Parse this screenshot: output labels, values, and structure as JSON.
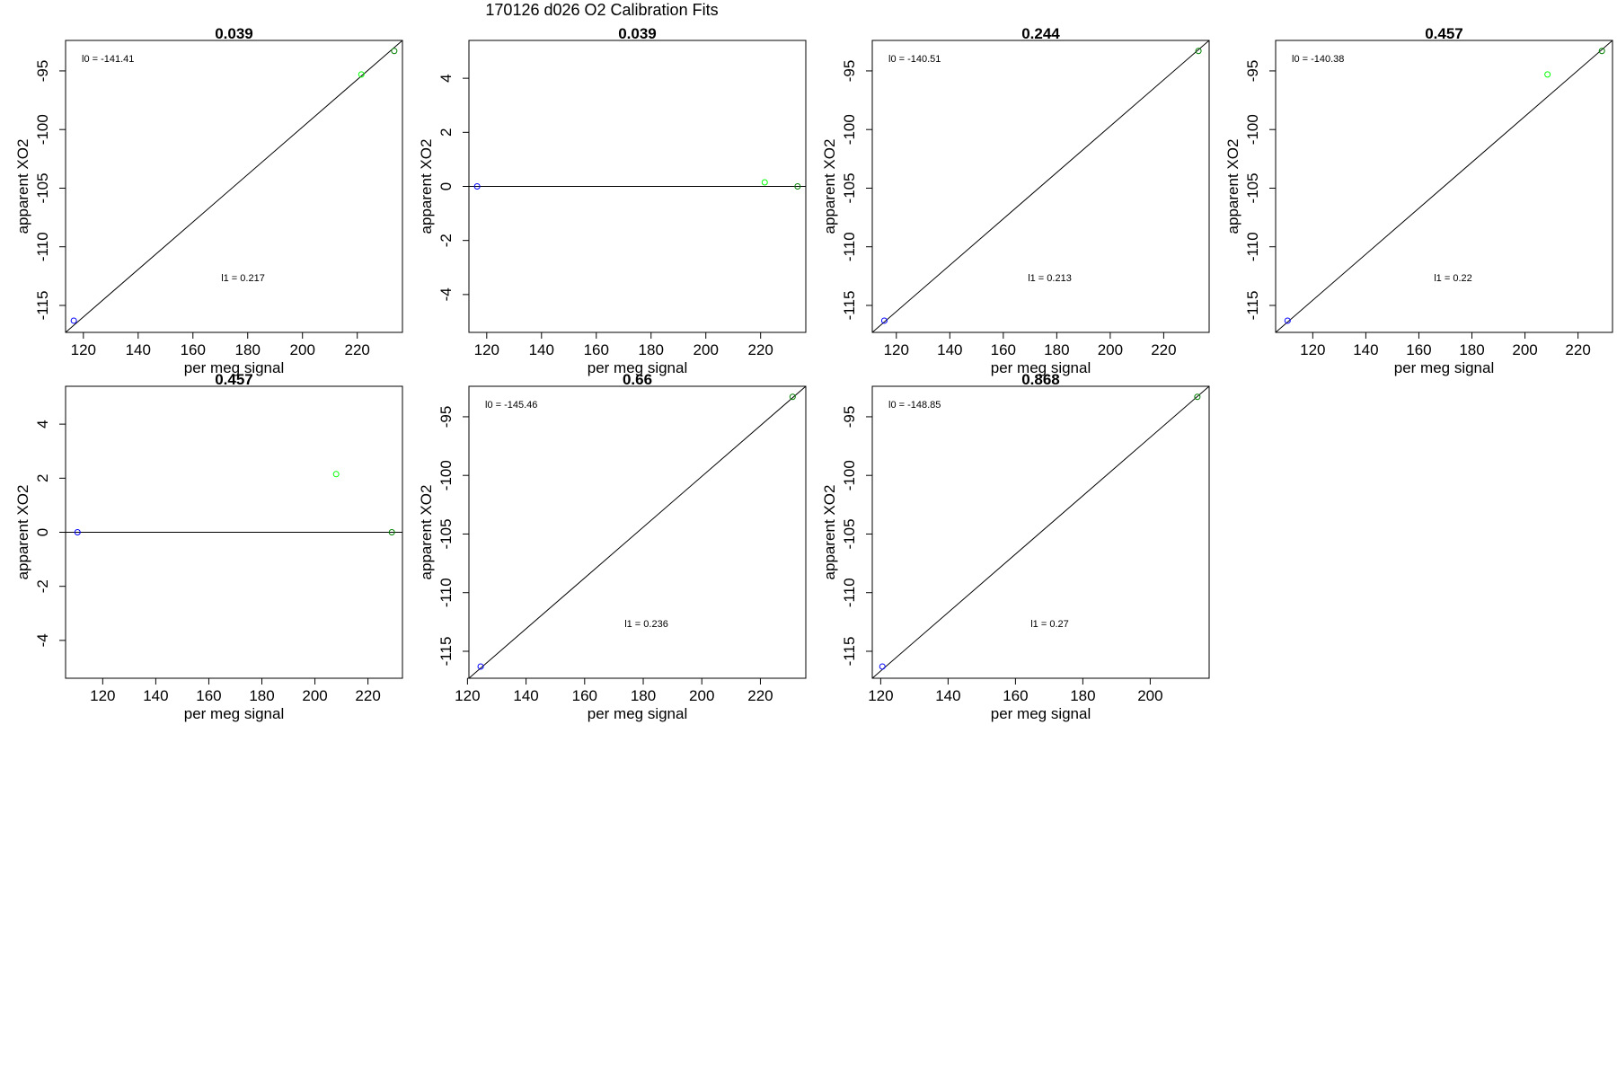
{
  "figure": {
    "title": "170126   d026   O2 Calibration Fits"
  },
  "chart_data": [
    {
      "type": "scatter",
      "title": "0.039",
      "xlabel": "per meg signal",
      "ylabel": "apparent XO2",
      "xlim": [
        113.5,
        236.5
      ],
      "ylim": [
        -117.3,
        -92.4
      ],
      "xticks": [
        120,
        140,
        160,
        180,
        200,
        220
      ],
      "yticks": [
        -95,
        -100,
        -105,
        -110,
        -115
      ],
      "fit_line": "diagonal",
      "annotations": {
        "l0": "l0 =  -141.41",
        "l1": "l1 =  0.217"
      },
      "points": [
        {
          "x": 116.5,
          "y": -116.3,
          "color": "#0000ff"
        },
        {
          "x": 221.5,
          "y": -95.3,
          "color": "#00ff00"
        },
        {
          "x": 233.5,
          "y": -93.3,
          "color": "#008000"
        }
      ]
    },
    {
      "type": "scatter",
      "title": "0.039",
      "xlabel": "per meg signal",
      "ylabel": "apparent XO2",
      "xlim": [
        113.5,
        236.5
      ],
      "ylim": [
        -5.4,
        5.4
      ],
      "xticks": [
        120,
        140,
        160,
        180,
        200,
        220
      ],
      "yticks": [
        4,
        2,
        0,
        -2,
        -4
      ],
      "fit_line": "zero",
      "annotations": {},
      "points": [
        {
          "x": 116.5,
          "y": 0.0,
          "color": "#0000ff"
        },
        {
          "x": 221.5,
          "y": 0.15,
          "color": "#00ff00"
        },
        {
          "x": 233.5,
          "y": 0.0,
          "color": "#008000"
        }
      ]
    },
    {
      "type": "scatter",
      "title": "0.244",
      "xlabel": "per meg signal",
      "ylabel": "apparent XO2",
      "xlim": [
        111.0,
        237.0
      ],
      "ylim": [
        -117.3,
        -92.4
      ],
      "xticks": [
        120,
        140,
        160,
        180,
        200,
        220
      ],
      "yticks": [
        -95,
        -100,
        -105,
        -110,
        -115
      ],
      "fit_line": "diagonal",
      "annotations": {
        "l0": "l0 =  -140.51",
        "l1": "l1 =  0.213"
      },
      "points": [
        {
          "x": 115.5,
          "y": -116.3,
          "color": "#0000ff"
        },
        {
          "x": 233.0,
          "y": -93.3,
          "color": "#008000"
        }
      ]
    },
    {
      "type": "scatter",
      "title": "0.457",
      "xlabel": "per meg signal",
      "ylabel": "apparent XO2",
      "xlim": [
        106.0,
        233.0
      ],
      "ylim": [
        -117.3,
        -92.4
      ],
      "xticks": [
        120,
        140,
        160,
        180,
        200,
        220
      ],
      "yticks": [
        -95,
        -100,
        -105,
        -110,
        -115
      ],
      "fit_line": "diagonal",
      "annotations": {
        "l0": "l0 =  -140.38",
        "l1": "l1 =  0.22"
      },
      "points": [
        {
          "x": 110.5,
          "y": -116.3,
          "color": "#0000ff"
        },
        {
          "x": 208.5,
          "y": -95.3,
          "color": "#00ff00"
        },
        {
          "x": 229.0,
          "y": -93.3,
          "color": "#008000"
        }
      ]
    },
    {
      "type": "scatter",
      "title": "0.457",
      "xlabel": "per meg signal",
      "ylabel": "apparent XO2",
      "xlim": [
        106.0,
        233.0
      ],
      "ylim": [
        -5.4,
        5.4
      ],
      "xticks": [
        120,
        140,
        160,
        180,
        200,
        220
      ],
      "yticks": [
        4,
        2,
        0,
        -2,
        -4
      ],
      "fit_line": "zero",
      "annotations": {},
      "points": [
        {
          "x": 110.5,
          "y": 0.0,
          "color": "#0000ff"
        },
        {
          "x": 208.0,
          "y": 2.15,
          "color": "#00ff00"
        },
        {
          "x": 229.0,
          "y": 0.0,
          "color": "#008000"
        }
      ]
    },
    {
      "type": "scatter",
      "title": "0.66",
      "xlabel": "per meg signal",
      "ylabel": "apparent XO2",
      "xlim": [
        120.5,
        235.5
      ],
      "ylim": [
        -117.3,
        -92.4
      ],
      "xticks": [
        120,
        140,
        160,
        180,
        200,
        220
      ],
      "yticks": [
        -95,
        -100,
        -105,
        -110,
        -115
      ],
      "fit_line": "diagonal",
      "annotations": {
        "l0": "l0 =  -145.46",
        "l1": "l1 =  0.236"
      },
      "points": [
        {
          "x": 124.5,
          "y": -116.3,
          "color": "#0000ff"
        },
        {
          "x": 231.0,
          "y": -93.3,
          "color": "#008000"
        }
      ]
    },
    {
      "type": "scatter",
      "title": "0.868",
      "xlabel": "per meg signal",
      "ylabel": "apparent XO2",
      "xlim": [
        117.5,
        217.5
      ],
      "ylim": [
        -117.3,
        -92.4
      ],
      "xticks": [
        120,
        140,
        160,
        180,
        200
      ],
      "yticks": [
        -95,
        -100,
        -105,
        -110,
        -115
      ],
      "fit_line": "diagonal",
      "annotations": {
        "l0": "l0 =  -148.85",
        "l1": "l1 =  0.27"
      },
      "points": [
        {
          "x": 120.5,
          "y": -116.3,
          "color": "#0000ff"
        },
        {
          "x": 214.0,
          "y": -93.3,
          "color": "#008000"
        }
      ]
    }
  ]
}
